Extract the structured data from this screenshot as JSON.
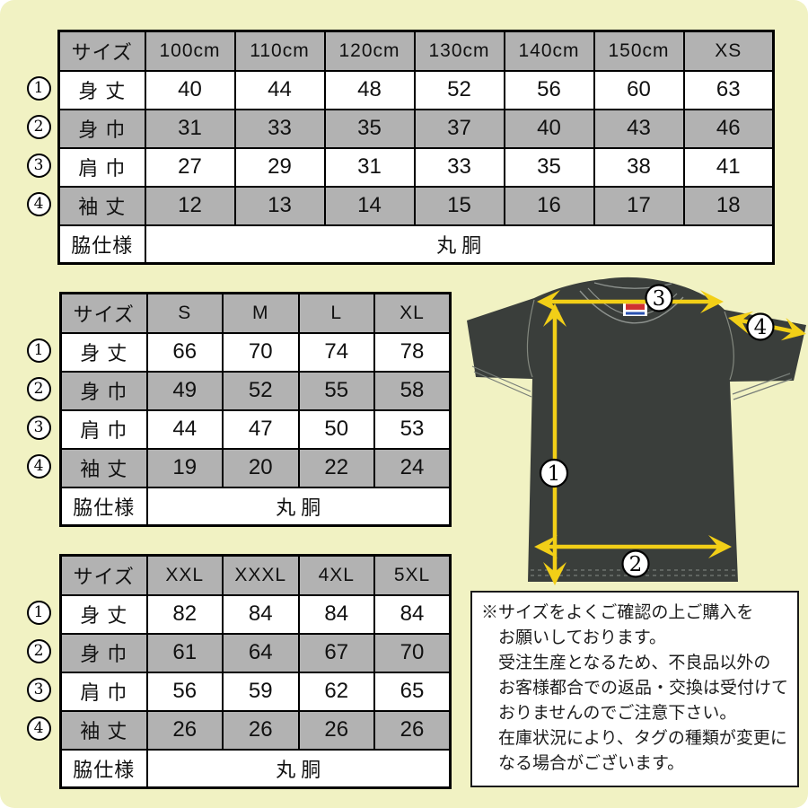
{
  "colors": {
    "background": "#f1f2c3",
    "table_gray": "#b2b2b2",
    "shirt_body": "#3a3e3b",
    "seam_gray": "#8e938f",
    "arrow_yellow": "#f2cf17",
    "tag_red": "#d03030",
    "tag_blue": "#2a52b0"
  },
  "size_tables": [
    {
      "name": "kids-sizes",
      "columns": [
        "サイズ",
        "100cm",
        "110cm",
        "120cm",
        "130cm",
        "140cm",
        "150cm",
        "XS"
      ],
      "rows": [
        {
          "marker": "1",
          "label": "身 丈",
          "values": [
            "40",
            "44",
            "48",
            "52",
            "56",
            "60",
            "63"
          ]
        },
        {
          "marker": "2",
          "label": "身 巾",
          "values": [
            "31",
            "33",
            "35",
            "37",
            "40",
            "43",
            "46"
          ]
        },
        {
          "marker": "3",
          "label": "肩 巾",
          "values": [
            "27",
            "29",
            "31",
            "33",
            "35",
            "38",
            "41"
          ]
        },
        {
          "marker": "4",
          "label": "袖 丈",
          "values": [
            "12",
            "13",
            "14",
            "15",
            "16",
            "17",
            "18"
          ]
        }
      ],
      "footer": {
        "label": "脇仕様",
        "value": "丸 胴"
      }
    },
    {
      "name": "adult-sizes",
      "columns": [
        "サイズ",
        "S",
        "M",
        "L",
        "XL"
      ],
      "rows": [
        {
          "marker": "1",
          "label": "身 丈",
          "values": [
            "66",
            "70",
            "74",
            "78"
          ]
        },
        {
          "marker": "2",
          "label": "身 巾",
          "values": [
            "49",
            "52",
            "55",
            "58"
          ]
        },
        {
          "marker": "3",
          "label": "肩 巾",
          "values": [
            "44",
            "47",
            "50",
            "53"
          ]
        },
        {
          "marker": "4",
          "label": "袖 丈",
          "values": [
            "19",
            "20",
            "22",
            "24"
          ]
        }
      ],
      "footer": {
        "label": "脇仕様",
        "value": "丸 胴"
      }
    },
    {
      "name": "big-sizes",
      "columns": [
        "サイズ",
        "XXL",
        "XXXL",
        "4XL",
        "5XL"
      ],
      "rows": [
        {
          "marker": "1",
          "label": "身 丈",
          "values": [
            "82",
            "84",
            "84",
            "84"
          ]
        },
        {
          "marker": "2",
          "label": "身 巾",
          "values": [
            "61",
            "64",
            "67",
            "70"
          ]
        },
        {
          "marker": "3",
          "label": "肩 巾",
          "values": [
            "56",
            "59",
            "62",
            "65"
          ]
        },
        {
          "marker": "4",
          "label": "袖 丈",
          "values": [
            "26",
            "26",
            "26",
            "26"
          ]
        }
      ],
      "footer": {
        "label": "脇仕様",
        "value": "丸 胴"
      }
    }
  ],
  "tshirt": {
    "markers": [
      "1",
      "2",
      "3",
      "4"
    ]
  },
  "note": {
    "lines": [
      "※サイズをよくご確認の上ご購入を",
      "お願いしております。",
      "受注生産となるため、不良品以外の",
      "お客様都合での返品・交換は受付けて",
      "おりませんのでご注意下さい。",
      "在庫状況により、タグの種類が変更に",
      "なる場合がございます。"
    ]
  }
}
